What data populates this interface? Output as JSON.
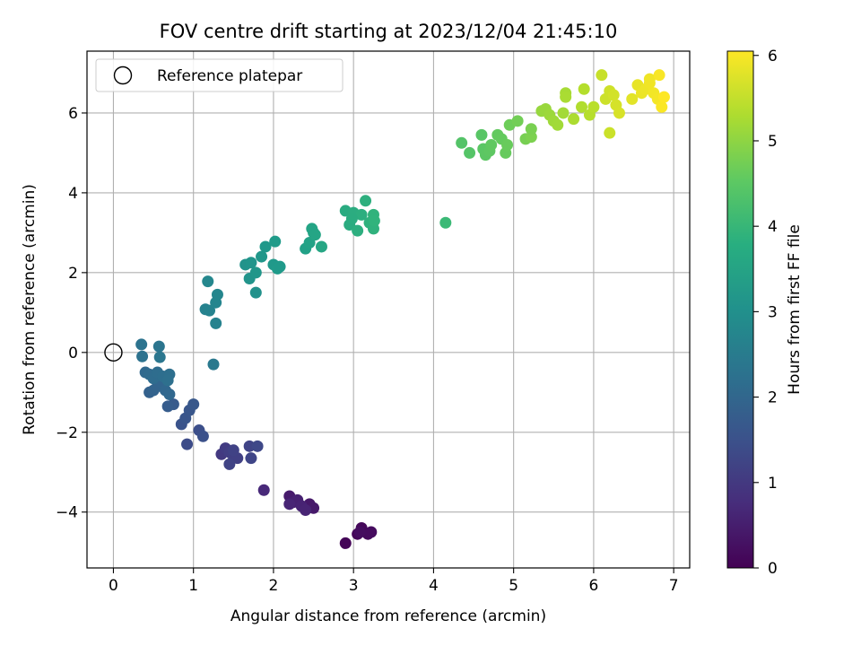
{
  "chart_data": {
    "type": "scatter",
    "title": "FOV centre drift starting at 2023/12/04 21:45:10",
    "xlabel": "Angular distance from reference (arcmin)",
    "ylabel": "Rotation from reference (arcmin)",
    "xlim": [
      -0.33,
      7.2
    ],
    "ylim": [
      -5.4,
      7.55
    ],
    "xticks": [
      0,
      1,
      2,
      3,
      4,
      5,
      6,
      7
    ],
    "yticks": [
      -4,
      -2,
      0,
      2,
      4,
      6
    ],
    "grid": true,
    "legend": {
      "placement": "top-left",
      "entries": [
        {
          "label": "Reference platepar",
          "marker": "open-circle"
        }
      ]
    },
    "reference_point": {
      "x": 0,
      "y": 0
    },
    "colorbar": {
      "label": "Hours from first FF file",
      "colormap": "viridis",
      "range": [
        0,
        6.05
      ],
      "ticks": [
        0,
        1,
        2,
        3,
        4,
        5,
        6
      ]
    },
    "points": [
      {
        "x": 2.9,
        "y": -4.78,
        "c": 0.05
      },
      {
        "x": 3.05,
        "y": -4.55,
        "c": 0.1
      },
      {
        "x": 3.1,
        "y": -4.4,
        "c": 0.12
      },
      {
        "x": 3.18,
        "y": -4.55,
        "c": 0.15
      },
      {
        "x": 3.22,
        "y": -4.5,
        "c": 0.18
      },
      {
        "x": 3.08,
        "y": -4.5,
        "c": 0.2
      },
      {
        "x": 2.45,
        "y": -3.8,
        "c": 0.4
      },
      {
        "x": 2.5,
        "y": -3.9,
        "c": 0.42
      },
      {
        "x": 2.2,
        "y": -3.6,
        "c": 0.45
      },
      {
        "x": 2.25,
        "y": -3.75,
        "c": 0.5
      },
      {
        "x": 2.3,
        "y": -3.7,
        "c": 0.55
      },
      {
        "x": 2.35,
        "y": -3.85,
        "c": 0.58
      },
      {
        "x": 2.4,
        "y": -3.95,
        "c": 0.6
      },
      {
        "x": 2.2,
        "y": -3.8,
        "c": 0.62
      },
      {
        "x": 1.88,
        "y": -3.45,
        "c": 0.7
      },
      {
        "x": 1.35,
        "y": -2.55,
        "c": 1.0
      },
      {
        "x": 1.4,
        "y": -2.4,
        "c": 1.05
      },
      {
        "x": 1.45,
        "y": -2.5,
        "c": 1.1
      },
      {
        "x": 1.5,
        "y": -2.6,
        "c": 1.12
      },
      {
        "x": 1.55,
        "y": -2.65,
        "c": 1.15
      },
      {
        "x": 1.45,
        "y": -2.8,
        "c": 1.2
      },
      {
        "x": 1.7,
        "y": -2.35,
        "c": 1.22
      },
      {
        "x": 1.72,
        "y": -2.65,
        "c": 1.25
      },
      {
        "x": 1.8,
        "y": -2.35,
        "c": 1.3
      },
      {
        "x": 1.5,
        "y": -2.45,
        "c": 1.18
      },
      {
        "x": 0.92,
        "y": -2.3,
        "c": 1.4
      },
      {
        "x": 1.07,
        "y": -1.95,
        "c": 1.45
      },
      {
        "x": 1.12,
        "y": -2.1,
        "c": 1.5
      },
      {
        "x": 0.85,
        "y": -1.8,
        "c": 1.55
      },
      {
        "x": 0.9,
        "y": -1.65,
        "c": 1.6
      },
      {
        "x": 0.95,
        "y": -1.45,
        "c": 1.62
      },
      {
        "x": 1.0,
        "y": -1.3,
        "c": 1.65
      },
      {
        "x": 0.75,
        "y": -1.3,
        "c": 1.7
      },
      {
        "x": 0.68,
        "y": -1.35,
        "c": 1.75
      },
      {
        "x": 0.45,
        "y": -1.0,
        "c": 1.85
      },
      {
        "x": 0.5,
        "y": -0.95,
        "c": 1.9
      },
      {
        "x": 0.55,
        "y": -0.85,
        "c": 1.92
      },
      {
        "x": 0.6,
        "y": -0.75,
        "c": 1.95
      },
      {
        "x": 0.65,
        "y": -0.95,
        "c": 2.0
      },
      {
        "x": 0.7,
        "y": -1.05,
        "c": 2.02
      },
      {
        "x": 0.4,
        "y": -0.5,
        "c": 2.05
      },
      {
        "x": 0.45,
        "y": -0.55,
        "c": 2.1
      },
      {
        "x": 0.5,
        "y": -0.65,
        "c": 2.12
      },
      {
        "x": 0.55,
        "y": -0.5,
        "c": 2.15
      },
      {
        "x": 0.62,
        "y": -0.6,
        "c": 2.18
      },
      {
        "x": 0.7,
        "y": -0.55,
        "c": 2.2
      },
      {
        "x": 0.68,
        "y": -0.7,
        "c": 2.22
      },
      {
        "x": 0.36,
        "y": -0.1,
        "c": 2.28
      },
      {
        "x": 0.35,
        "y": 0.2,
        "c": 2.3
      },
      {
        "x": 0.57,
        "y": 0.15,
        "c": 2.35
      },
      {
        "x": 0.58,
        "y": -0.12,
        "c": 2.38
      },
      {
        "x": 1.25,
        "y": -0.3,
        "c": 2.45
      },
      {
        "x": 1.15,
        "y": 1.08,
        "c": 2.7
      },
      {
        "x": 1.2,
        "y": 1.05,
        "c": 2.72
      },
      {
        "x": 1.28,
        "y": 1.25,
        "c": 2.75
      },
      {
        "x": 1.3,
        "y": 1.45,
        "c": 2.78
      },
      {
        "x": 1.18,
        "y": 1.78,
        "c": 2.8
      },
      {
        "x": 1.28,
        "y": 0.73,
        "c": 2.68
      },
      {
        "x": 1.78,
        "y": 1.5,
        "c": 3.05
      },
      {
        "x": 1.65,
        "y": 2.2,
        "c": 3.1
      },
      {
        "x": 1.7,
        "y": 1.85,
        "c": 3.12
      },
      {
        "x": 1.72,
        "y": 2.25,
        "c": 3.15
      },
      {
        "x": 1.78,
        "y": 2.0,
        "c": 3.18
      },
      {
        "x": 1.85,
        "y": 2.4,
        "c": 3.2
      },
      {
        "x": 1.9,
        "y": 2.65,
        "c": 3.22
      },
      {
        "x": 2.0,
        "y": 2.2,
        "c": 3.25
      },
      {
        "x": 2.05,
        "y": 2.1,
        "c": 3.28
      },
      {
        "x": 2.02,
        "y": 2.78,
        "c": 3.3
      },
      {
        "x": 2.08,
        "y": 2.15,
        "c": 3.27
      },
      {
        "x": 2.4,
        "y": 2.6,
        "c": 3.45
      },
      {
        "x": 2.45,
        "y": 2.75,
        "c": 3.48
      },
      {
        "x": 2.5,
        "y": 3.0,
        "c": 3.5
      },
      {
        "x": 2.48,
        "y": 3.1,
        "c": 3.52
      },
      {
        "x": 2.52,
        "y": 2.95,
        "c": 3.55
      },
      {
        "x": 2.6,
        "y": 2.65,
        "c": 3.58
      },
      {
        "x": 2.9,
        "y": 3.55,
        "c": 3.7
      },
      {
        "x": 2.95,
        "y": 3.2,
        "c": 3.72
      },
      {
        "x": 3.0,
        "y": 3.5,
        "c": 3.75
      },
      {
        "x": 3.05,
        "y": 3.05,
        "c": 3.78
      },
      {
        "x": 3.1,
        "y": 3.45,
        "c": 3.8
      },
      {
        "x": 3.15,
        "y": 3.8,
        "c": 3.82
      },
      {
        "x": 3.2,
        "y": 3.25,
        "c": 3.85
      },
      {
        "x": 3.25,
        "y": 3.1,
        "c": 3.88
      },
      {
        "x": 3.25,
        "y": 3.45,
        "c": 3.9
      },
      {
        "x": 2.98,
        "y": 3.35,
        "c": 3.74
      },
      {
        "x": 3.26,
        "y": 3.3,
        "c": 3.92
      },
      {
        "x": 4.15,
        "y": 3.25,
        "c": 4.1
      },
      {
        "x": 4.35,
        "y": 5.25,
        "c": 4.4
      },
      {
        "x": 4.45,
        "y": 5.0,
        "c": 4.42
      },
      {
        "x": 4.6,
        "y": 5.45,
        "c": 4.45
      },
      {
        "x": 4.62,
        "y": 5.1,
        "c": 4.48
      },
      {
        "x": 4.65,
        "y": 4.95,
        "c": 4.5
      },
      {
        "x": 4.7,
        "y": 5.05,
        "c": 4.52
      },
      {
        "x": 4.72,
        "y": 5.2,
        "c": 4.55
      },
      {
        "x": 4.8,
        "y": 5.45,
        "c": 4.58
      },
      {
        "x": 4.85,
        "y": 5.35,
        "c": 4.6
      },
      {
        "x": 4.9,
        "y": 5.0,
        "c": 4.62
      },
      {
        "x": 4.92,
        "y": 5.2,
        "c": 4.65
      },
      {
        "x": 4.95,
        "y": 5.7,
        "c": 4.7
      },
      {
        "x": 5.05,
        "y": 5.8,
        "c": 4.75
      },
      {
        "x": 5.15,
        "y": 5.35,
        "c": 4.8
      },
      {
        "x": 5.22,
        "y": 5.4,
        "c": 4.85
      },
      {
        "x": 5.22,
        "y": 5.6,
        "c": 4.82
      },
      {
        "x": 5.35,
        "y": 6.05,
        "c": 5.1
      },
      {
        "x": 5.4,
        "y": 6.1,
        "c": 5.12
      },
      {
        "x": 5.45,
        "y": 5.95,
        "c": 5.15
      },
      {
        "x": 5.5,
        "y": 5.8,
        "c": 5.18
      },
      {
        "x": 5.55,
        "y": 5.7,
        "c": 5.2
      },
      {
        "x": 5.62,
        "y": 6.0,
        "c": 5.22
      },
      {
        "x": 5.65,
        "y": 6.5,
        "c": 5.25
      },
      {
        "x": 5.65,
        "y": 6.4,
        "c": 5.28
      },
      {
        "x": 5.75,
        "y": 5.85,
        "c": 5.3
      },
      {
        "x": 5.85,
        "y": 6.15,
        "c": 5.35
      },
      {
        "x": 5.88,
        "y": 6.6,
        "c": 5.38
      },
      {
        "x": 5.95,
        "y": 5.95,
        "c": 5.4
      },
      {
        "x": 6.0,
        "y": 6.15,
        "c": 5.42
      },
      {
        "x": 6.1,
        "y": 6.95,
        "c": 5.55
      },
      {
        "x": 6.15,
        "y": 6.35,
        "c": 5.6
      },
      {
        "x": 6.2,
        "y": 6.55,
        "c": 5.62
      },
      {
        "x": 6.2,
        "y": 5.5,
        "c": 5.58
      },
      {
        "x": 6.25,
        "y": 6.45,
        "c": 5.65
      },
      {
        "x": 6.28,
        "y": 6.2,
        "c": 5.68
      },
      {
        "x": 6.32,
        "y": 6.0,
        "c": 5.7
      },
      {
        "x": 6.48,
        "y": 6.35,
        "c": 5.8
      },
      {
        "x": 6.55,
        "y": 6.7,
        "c": 5.85
      },
      {
        "x": 6.6,
        "y": 6.5,
        "c": 5.88
      },
      {
        "x": 6.65,
        "y": 6.6,
        "c": 5.9
      },
      {
        "x": 6.7,
        "y": 6.85,
        "c": 5.92
      },
      {
        "x": 6.75,
        "y": 6.5,
        "c": 5.95
      },
      {
        "x": 6.8,
        "y": 6.35,
        "c": 5.97
      },
      {
        "x": 6.82,
        "y": 6.95,
        "c": 6.0
      },
      {
        "x": 6.85,
        "y": 6.15,
        "c": 6.02
      },
      {
        "x": 6.88,
        "y": 6.4,
        "c": 6.05
      },
      {
        "x": 6.7,
        "y": 6.75,
        "c": 5.93
      }
    ]
  }
}
